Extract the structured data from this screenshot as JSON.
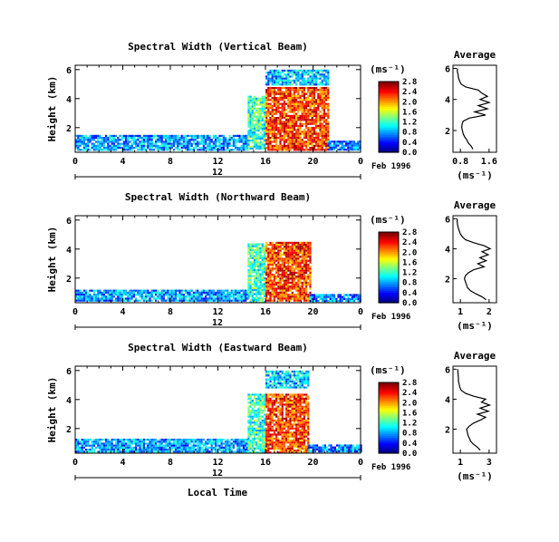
{
  "chart_data": [
    {
      "type": "heatmap",
      "title": "Spectral Width (Vertical Beam)",
      "ylabel": "Height (km)",
      "x_ticks": [
        "0",
        "4",
        "8",
        "12",
        "16",
        "20",
        "0"
      ],
      "y_ticks": [
        "2",
        "4",
        "6"
      ],
      "day_label": "12",
      "date_label": "Feb 1996",
      "colorbar": {
        "unit": "(ms⁻¹)",
        "ticks": [
          "0.0",
          "0.4",
          "0.8",
          "1.2",
          "1.6",
          "2.0",
          "2.4",
          "2.8"
        ]
      },
      "average": {
        "title": "Average",
        "xlabel": "(ms⁻¹)",
        "x_ticks": [
          "0.8",
          "1.6"
        ],
        "xlim": [
          0.6,
          1.8
        ],
        "y_ticks": [
          "2",
          "4",
          "6"
        ],
        "ylim": [
          0.6,
          6.2
        ],
        "heights": [
          0.8,
          1.0,
          1.2,
          1.4,
          1.6,
          1.8,
          2.0,
          2.2,
          2.4,
          2.6,
          2.8,
          3.0,
          3.2,
          3.4,
          3.6,
          3.8,
          4.0,
          4.2,
          4.4,
          4.6,
          4.8,
          5.0,
          5.2,
          5.4,
          5.6,
          5.8,
          6.0
        ],
        "values": [
          1.15,
          1.1,
          1.02,
          0.98,
          0.92,
          0.88,
          0.86,
          0.84,
          0.85,
          0.88,
          1.05,
          1.5,
          1.2,
          1.55,
          1.3,
          1.6,
          1.35,
          1.55,
          1.4,
          1.3,
          0.95,
          0.82,
          0.78,
          0.75,
          0.74,
          0.72,
          0.72
        ]
      },
      "blocks": [
        {
          "t0": 0,
          "t1": 14.5,
          "h0": 0.5,
          "h1": 1.5,
          "val": 0.8
        },
        {
          "t0": 14.5,
          "t1": 16.0,
          "h0": 0.5,
          "h1": 4.2,
          "val": 1.2
        },
        {
          "t0": 16.0,
          "t1": 21.2,
          "h0": 0.5,
          "h1": 4.8,
          "val": 2.3
        },
        {
          "t0": 16.0,
          "t1": 21.2,
          "h0": 5.0,
          "h1": 6.0,
          "val": 0.9
        },
        {
          "t0": 21.2,
          "t1": 24,
          "h0": 0.5,
          "h1": 1.1,
          "val": 0.7
        }
      ]
    },
    {
      "type": "heatmap",
      "title": "Spectral Width (Northward Beam)",
      "ylabel": "Height (km)",
      "x_ticks": [
        "0",
        "4",
        "8",
        "12",
        "16",
        "20",
        "0"
      ],
      "y_ticks": [
        "2",
        "4",
        "6"
      ],
      "day_label": "12",
      "date_label": "Feb 1996",
      "colorbar": {
        "unit": "(ms⁻¹)",
        "ticks": [
          "0.0",
          "0.4",
          "0.8",
          "1.2",
          "1.6",
          "2.0",
          "2.4",
          "2.8"
        ]
      },
      "average": {
        "title": "Average",
        "xlabel": "(ms⁻¹)",
        "x_ticks": [
          "1",
          "2"
        ],
        "xlim": [
          0.5,
          2.6
        ],
        "y_ticks": [
          "2",
          "4",
          "6"
        ],
        "ylim": [
          0.4,
          6.2
        ],
        "heights": [
          0.6,
          0.8,
          1.0,
          1.2,
          1.4,
          1.6,
          1.8,
          2.0,
          2.2,
          2.4,
          2.6,
          2.8,
          3.0,
          3.2,
          3.4,
          3.6,
          3.8,
          4.0,
          4.2,
          4.4,
          4.6,
          4.8,
          5.0,
          5.2,
          5.4,
          5.6,
          5.8,
          6.0
        ],
        "values": [
          2.1,
          1.9,
          1.6,
          1.35,
          1.2,
          1.15,
          1.1,
          1.05,
          1.1,
          1.25,
          1.5,
          2.0,
          1.7,
          2.1,
          1.8,
          2.2,
          1.9,
          2.3,
          2.0,
          1.5,
          1.1,
          0.95,
          0.85,
          0.8,
          0.75,
          0.72,
          0.7,
          0.7
        ]
      },
      "blocks": [
        {
          "t0": 0,
          "t1": 14.5,
          "h0": 0.4,
          "h1": 1.2,
          "val": 0.8
        },
        {
          "t0": 14.5,
          "t1": 16.0,
          "h0": 0.4,
          "h1": 4.4,
          "val": 1.2
        },
        {
          "t0": 16.0,
          "t1": 19.7,
          "h0": 0.4,
          "h1": 4.5,
          "val": 2.3
        },
        {
          "t0": 19.7,
          "t1": 24,
          "h0": 0.4,
          "h1": 0.9,
          "val": 0.7
        }
      ]
    },
    {
      "type": "heatmap",
      "title": "Spectral Width (Eastward Beam)",
      "ylabel": "Height (km)",
      "xlabel": "Local Time",
      "x_ticks": [
        "0",
        "4",
        "8",
        "12",
        "16",
        "20",
        "0"
      ],
      "y_ticks": [
        "2",
        "4",
        "6"
      ],
      "day_label": "12",
      "date_label": "Feb 1996",
      "colorbar": {
        "unit": "(ms⁻¹)",
        "ticks": [
          "0.0",
          "0.4",
          "0.8",
          "1.2",
          "1.6",
          "2.0",
          "2.4",
          "2.8"
        ]
      },
      "average": {
        "title": "Average",
        "xlabel": "(ms⁻¹)",
        "x_ticks": [
          "1",
          "3"
        ],
        "xlim": [
          0.4,
          3.6
        ],
        "y_ticks": [
          "2",
          "4",
          "6"
        ],
        "ylim": [
          0.4,
          6.2
        ],
        "heights": [
          0.6,
          0.8,
          1.0,
          1.2,
          1.4,
          1.6,
          1.8,
          2.0,
          2.2,
          2.4,
          2.6,
          2.8,
          3.0,
          3.2,
          3.4,
          3.6,
          3.8,
          4.0,
          4.2,
          4.4,
          4.6,
          4.8,
          5.0,
          5.2,
          5.4,
          5.6,
          5.8,
          6.0
        ],
        "values": [
          2.4,
          2.2,
          1.9,
          1.7,
          1.6,
          1.5,
          1.45,
          1.4,
          1.6,
          1.9,
          2.4,
          2.8,
          2.2,
          3.0,
          2.4,
          3.1,
          2.5,
          2.8,
          1.9,
          1.3,
          1.0,
          0.9,
          0.85,
          0.8,
          0.8,
          0.78,
          0.76,
          0.75
        ]
      },
      "blocks": [
        {
          "t0": 0,
          "t1": 14.5,
          "h0": 0.4,
          "h1": 1.3,
          "val": 0.8
        },
        {
          "t0": 14.5,
          "t1": 16.0,
          "h0": 0.4,
          "h1": 4.4,
          "val": 1.2
        },
        {
          "t0": 16.0,
          "t1": 19.6,
          "h0": 0.4,
          "h1": 4.4,
          "val": 2.3
        },
        {
          "t0": 16.0,
          "t1": 19.6,
          "h0": 4.8,
          "h1": 6.0,
          "val": 0.9
        },
        {
          "t0": 19.6,
          "t1": 24,
          "h0": 0.4,
          "h1": 0.9,
          "val": 0.7
        }
      ]
    }
  ]
}
